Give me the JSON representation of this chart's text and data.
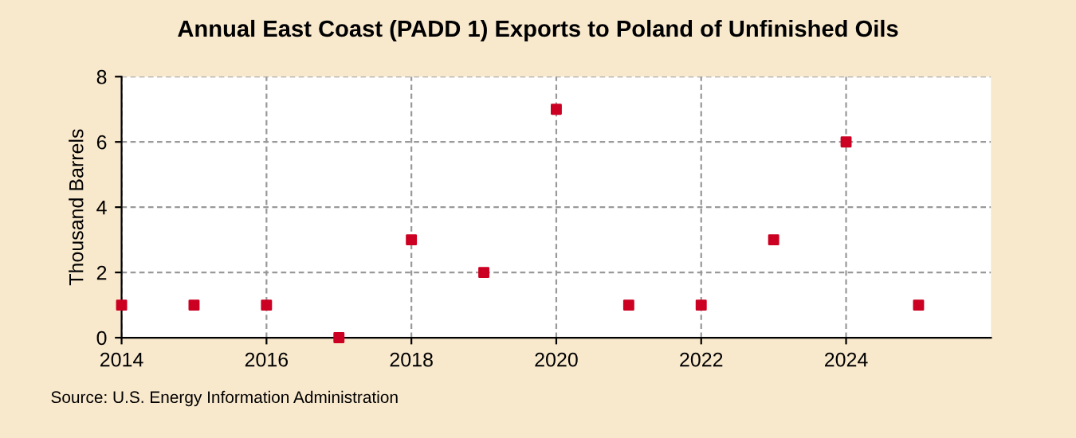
{
  "chart_data": {
    "type": "scatter",
    "title": "Annual East Coast (PADD 1) Exports to Poland of Unfinished Oils",
    "ylabel": "Thousand Barrels",
    "x": [
      2014,
      2015,
      2016,
      2017,
      2018,
      2019,
      2020,
      2021,
      2022,
      2023,
      2024,
      2025
    ],
    "series": [
      {
        "color": "#cc0022",
        "values": [
          1,
          1,
          1,
          0,
          3,
          2,
          7,
          1,
          1,
          3,
          6,
          1
        ]
      }
    ],
    "xlim": [
      2014,
      2026
    ],
    "xticks": [
      2014,
      2016,
      2018,
      2020,
      2022,
      2024
    ],
    "ylim": [
      0,
      8
    ],
    "yticks": [
      0,
      2,
      4,
      6,
      8
    ],
    "grid": true,
    "marker": "square",
    "annotations": [
      "Source: U.S. Energy Information Administration"
    ]
  }
}
